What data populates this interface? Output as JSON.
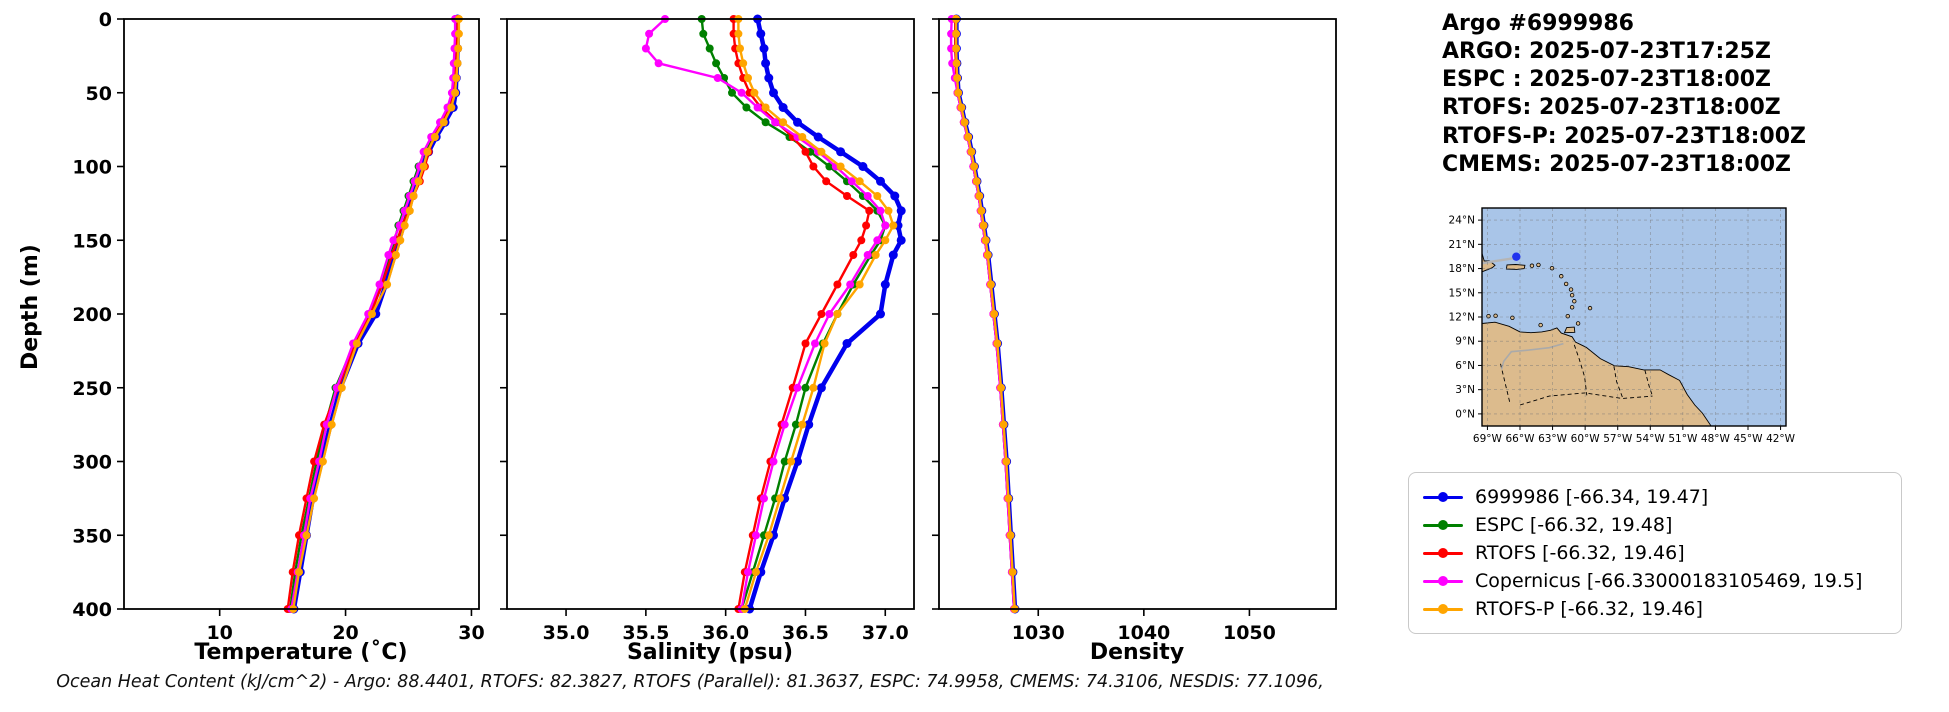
{
  "title_block": {
    "lines": [
      "Argo #6999986",
      "ARGO: 2025-07-23T17:25Z",
      "ESPC : 2025-07-23T18:00Z",
      "RTOFS: 2025-07-23T18:00Z",
      "RTOFS-P: 2025-07-23T18:00Z",
      "CMEMS: 2025-07-23T18:00Z"
    ]
  },
  "caption": "Ocean Heat Content (kJ/cm^2) - Argo: 88.4401,  RTOFS: 82.3827,  RTOFS (Parallel): 81.3637,  ESPC: 74.9958,  CMEMS: 74.3106,  NESDIS: 77.1096,",
  "legend": {
    "items": [
      {
        "label": "6999986 [-66.34, 19.47]",
        "color": "#0000ee"
      },
      {
        "label": "ESPC [-66.32, 19.48]",
        "color": "#008000"
      },
      {
        "label": "RTOFS [-66.32, 19.46]",
        "color": "#ff0000"
      },
      {
        "label": "Copernicus [-66.33000183105469, 19.5]",
        "color": "#ff00ff"
      },
      {
        "label": "RTOFS-P [-66.32, 19.46]",
        "color": "#ffa500"
      }
    ]
  },
  "map": {
    "lat_tick_labels": [
      "0°N",
      "3°N",
      "6°N",
      "9°N",
      "12°N",
      "15°N",
      "18°N",
      "21°N",
      "24°N"
    ],
    "lat_tick_values": [
      0,
      3,
      6,
      9,
      12,
      15,
      18,
      21,
      24
    ],
    "lon_tick_labels": [
      "69°W",
      "66°W",
      "63°W",
      "60°W",
      "57°W",
      "54°W",
      "51°W",
      "48°W",
      "45°W",
      "42°W"
    ],
    "lon_tick_values": [
      -69,
      -66,
      -63,
      -60,
      -57,
      -54,
      -51,
      -48,
      -45,
      -42
    ],
    "lon_range": [
      -69.5,
      -41.5
    ],
    "lat_range": [
      -1.5,
      25.5
    ],
    "ocean_color": "#a9c5e8",
    "land_color": "#dcbb8d",
    "marker": {
      "lon": -66.34,
      "lat": 19.47,
      "color": "#2233ee"
    }
  },
  "chart_data": [
    {
      "type": "line",
      "xlabel": "Temperature (˚C)",
      "ylabel": "Depth (m)",
      "xlim": [
        2.4,
        30.6
      ],
      "ylim": [
        400,
        0
      ],
      "xticks": [
        10,
        20,
        30
      ],
      "xtick_labels": [
        "10",
        "20",
        "30"
      ],
      "yticks": [
        0,
        50,
        100,
        150,
        200,
        250,
        300,
        350,
        400
      ],
      "depths": [
        0,
        10,
        20,
        30,
        40,
        50,
        60,
        70,
        80,
        90,
        100,
        110,
        120,
        130,
        140,
        150,
        160,
        180,
        200,
        220,
        250,
        275,
        300,
        325,
        350,
        375,
        400
      ],
      "series": [
        {
          "name": "6999986",
          "color": "#0000ee",
          "linewidth": 4.5,
          "marker_size": 4.5,
          "values": [
            28.9,
            28.9,
            28.9,
            28.85,
            28.8,
            28.75,
            28.55,
            27.9,
            27.2,
            26.6,
            26.1,
            25.7,
            25.3,
            25.0,
            24.6,
            24.25,
            23.9,
            23.2,
            22.4,
            21.0,
            19.6,
            18.8,
            18.1,
            17.4,
            16.9,
            16.4,
            15.9
          ]
        },
        {
          "name": "ESPC",
          "color": "#008000",
          "linewidth": 2.4,
          "marker_size": 4,
          "values": [
            28.75,
            28.75,
            28.72,
            28.7,
            28.65,
            28.55,
            28.2,
            27.6,
            26.9,
            26.3,
            25.8,
            25.4,
            25.0,
            24.6,
            24.2,
            23.9,
            23.5,
            22.8,
            21.9,
            20.7,
            19.2,
            18.4,
            17.7,
            17.1,
            16.5,
            16.0,
            15.6
          ]
        },
        {
          "name": "RTOFS",
          "color": "#ff0000",
          "linewidth": 2.4,
          "marker_size": 4,
          "values": [
            28.9,
            28.9,
            28.85,
            28.8,
            28.7,
            28.6,
            28.3,
            27.7,
            27.0,
            26.6,
            26.3,
            25.9,
            25.4,
            25.0,
            24.5,
            24.1,
            23.7,
            22.9,
            22.0,
            20.8,
            19.4,
            18.3,
            17.5,
            16.9,
            16.3,
            15.8,
            15.4
          ]
        },
        {
          "name": "Copernicus",
          "color": "#ff00ff",
          "linewidth": 2.4,
          "marker_size": 4,
          "values": [
            28.7,
            28.7,
            28.65,
            28.6,
            28.55,
            28.45,
            28.1,
            27.5,
            26.8,
            26.2,
            25.9,
            25.5,
            25.1,
            24.7,
            24.3,
            23.8,
            23.4,
            22.7,
            21.8,
            20.6,
            19.3,
            18.5,
            17.9,
            17.2,
            16.7,
            16.2,
            15.7
          ]
        },
        {
          "name": "RTOFS-P",
          "color": "#ffa500",
          "linewidth": 2.4,
          "marker_size": 4,
          "values": [
            29.0,
            29.0,
            28.95,
            28.9,
            28.8,
            28.7,
            28.4,
            27.8,
            27.1,
            26.5,
            26.2,
            25.8,
            25.4,
            25.1,
            24.7,
            24.35,
            24.0,
            23.3,
            22.1,
            20.9,
            19.7,
            18.9,
            18.2,
            17.5,
            16.9,
            16.3,
            15.85
          ]
        }
      ]
    },
    {
      "type": "line",
      "xlabel": "Salinity (psu)",
      "ylabel": "Depth (m)",
      "xlim": [
        34.63,
        37.18
      ],
      "ylim": [
        400,
        0
      ],
      "xticks": [
        35.0,
        35.5,
        36.0,
        36.5,
        37.0
      ],
      "xtick_labels": [
        "35.0",
        "35.5",
        "36.0",
        "36.5",
        "37.0"
      ],
      "yticks": [
        0,
        50,
        100,
        150,
        200,
        250,
        300,
        350,
        400
      ],
      "depths": [
        0,
        10,
        20,
        30,
        40,
        50,
        60,
        70,
        80,
        90,
        100,
        110,
        120,
        130,
        140,
        150,
        160,
        180,
        200,
        220,
        250,
        275,
        300,
        325,
        350,
        375,
        400
      ],
      "series": [
        {
          "name": "6999986",
          "color": "#0000ee",
          "linewidth": 4.5,
          "marker_size": 4.5,
          "values": [
            36.2,
            36.22,
            36.24,
            36.25,
            36.27,
            36.3,
            36.36,
            36.45,
            36.58,
            36.72,
            36.86,
            36.97,
            37.06,
            37.1,
            37.08,
            37.1,
            37.05,
            37.0,
            36.97,
            36.76,
            36.6,
            36.52,
            36.45,
            36.37,
            36.3,
            36.22,
            36.15
          ]
        },
        {
          "name": "ESPC",
          "color": "#008000",
          "linewidth": 2.4,
          "marker_size": 4,
          "values": [
            35.85,
            35.86,
            35.9,
            35.94,
            35.99,
            36.04,
            36.13,
            36.25,
            36.4,
            36.53,
            36.65,
            36.76,
            36.86,
            36.95,
            37.0,
            36.97,
            36.91,
            36.8,
            36.7,
            36.61,
            36.5,
            36.44,
            36.37,
            36.31,
            36.24,
            36.17,
            36.1
          ]
        },
        {
          "name": "RTOFS",
          "color": "#ff0000",
          "linewidth": 2.4,
          "marker_size": 4,
          "values": [
            36.05,
            36.05,
            36.06,
            36.08,
            36.11,
            36.15,
            36.22,
            36.32,
            36.42,
            36.5,
            36.55,
            36.63,
            36.76,
            36.9,
            36.88,
            36.85,
            36.8,
            36.7,
            36.6,
            36.5,
            36.42,
            36.35,
            36.28,
            36.22,
            36.17,
            36.12,
            36.08
          ]
        },
        {
          "name": "Copernicus",
          "color": "#ff00ff",
          "linewidth": 2.4,
          "marker_size": 4,
          "values": [
            35.62,
            35.52,
            35.5,
            35.58,
            35.95,
            36.1,
            36.2,
            36.31,
            36.45,
            36.58,
            36.69,
            36.79,
            36.89,
            36.97,
            37.0,
            36.95,
            36.89,
            36.78,
            36.65,
            36.56,
            36.45,
            36.37,
            36.3,
            36.24,
            36.19,
            36.14,
            36.1
          ]
        },
        {
          "name": "RTOFS-P",
          "color": "#ffa500",
          "linewidth": 2.4,
          "marker_size": 4,
          "values": [
            36.08,
            36.08,
            36.09,
            36.11,
            36.14,
            36.18,
            36.25,
            36.36,
            36.48,
            36.6,
            36.72,
            36.84,
            36.95,
            37.02,
            37.05,
            37.0,
            36.94,
            36.84,
            36.7,
            36.62,
            36.55,
            36.48,
            36.41,
            36.34,
            36.27,
            36.19,
            36.12
          ]
        }
      ]
    },
    {
      "type": "line",
      "xlabel": "Density",
      "ylabel": "Depth (m)",
      "xlim": [
        1020.6,
        1058.2
      ],
      "ylim": [
        400,
        0
      ],
      "xticks": [
        1030,
        1040,
        1050
      ],
      "xtick_labels": [
        "1030",
        "1040",
        "1050"
      ],
      "yticks": [
        0,
        50,
        100,
        150,
        200,
        250,
        300,
        350,
        400
      ],
      "depths": [
        0,
        10,
        20,
        30,
        40,
        50,
        60,
        70,
        80,
        90,
        100,
        110,
        120,
        130,
        140,
        150,
        160,
        180,
        200,
        220,
        250,
        275,
        300,
        325,
        350,
        375,
        400
      ],
      "series": [
        {
          "name": "6999986",
          "color": "#0000ee",
          "linewidth": 4.5,
          "marker_size": 4.5,
          "values": [
            1022.25,
            1022.25,
            1022.25,
            1022.3,
            1022.35,
            1022.45,
            1022.75,
            1023.05,
            1023.4,
            1023.7,
            1023.95,
            1024.2,
            1024.45,
            1024.65,
            1024.85,
            1025.05,
            1025.25,
            1025.55,
            1025.85,
            1026.15,
            1026.5,
            1026.75,
            1027.0,
            1027.2,
            1027.4,
            1027.6,
            1027.8
          ]
        },
        {
          "name": "ESPC",
          "color": "#008000",
          "linewidth": 2.4,
          "marker_size": 4,
          "values": [
            1022.2,
            1022.2,
            1022.2,
            1022.25,
            1022.3,
            1022.4,
            1022.7,
            1023.0,
            1023.35,
            1023.65,
            1023.9,
            1024.15,
            1024.4,
            1024.6,
            1024.8,
            1025.0,
            1025.2,
            1025.5,
            1025.8,
            1026.1,
            1026.45,
            1026.7,
            1026.95,
            1027.15,
            1027.35,
            1027.55,
            1027.75
          ]
        },
        {
          "name": "RTOFS",
          "color": "#ff0000",
          "linewidth": 2.4,
          "marker_size": 4,
          "values": [
            1022.15,
            1022.15,
            1022.15,
            1022.2,
            1022.25,
            1022.35,
            1022.65,
            1022.95,
            1023.3,
            1023.6,
            1023.85,
            1024.1,
            1024.35,
            1024.55,
            1024.75,
            1024.95,
            1025.15,
            1025.45,
            1025.75,
            1026.05,
            1026.4,
            1026.65,
            1026.9,
            1027.1,
            1027.3,
            1027.5,
            1027.7
          ]
        },
        {
          "name": "Copernicus",
          "color": "#ff00ff",
          "linewidth": 2.4,
          "marker_size": 4,
          "values": [
            1021.8,
            1021.75,
            1021.75,
            1021.85,
            1022.1,
            1022.35,
            1022.65,
            1022.95,
            1023.3,
            1023.6,
            1023.85,
            1024.1,
            1024.35,
            1024.55,
            1024.75,
            1024.95,
            1025.15,
            1025.45,
            1025.75,
            1026.05,
            1026.4,
            1026.65,
            1026.9,
            1027.1,
            1027.3,
            1027.5,
            1027.7
          ]
        },
        {
          "name": "RTOFS-P",
          "color": "#ffa500",
          "linewidth": 2.4,
          "marker_size": 4,
          "values": [
            1022.22,
            1022.22,
            1022.22,
            1022.27,
            1022.32,
            1022.42,
            1022.72,
            1023.02,
            1023.37,
            1023.67,
            1023.92,
            1024.17,
            1024.42,
            1024.62,
            1024.82,
            1025.02,
            1025.22,
            1025.52,
            1025.82,
            1026.12,
            1026.47,
            1026.72,
            1026.97,
            1027.17,
            1027.37,
            1027.57,
            1027.77
          ]
        }
      ]
    }
  ]
}
